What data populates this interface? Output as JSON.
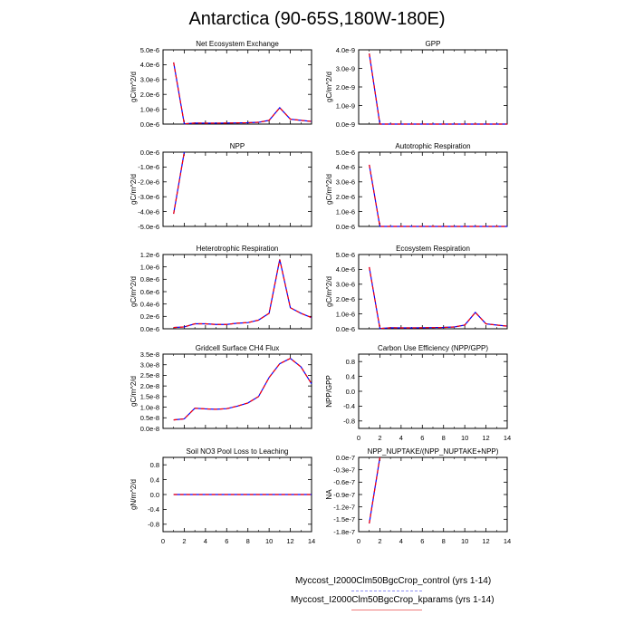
{
  "page_title": "Antarctica (90-65S,180W-180E)",
  "colors": {
    "control": "#0000ff",
    "kparams": "#ff0000",
    "legend_control": "#8f8ff0",
    "legend_kparams": "#f07a7a",
    "axis": "#000000"
  },
  "legend": {
    "entries": [
      {
        "label": "Myccost_I2000Clm50BgcCrop_control (yrs 1-14)",
        "style": "dashed",
        "color": "#8f8ff0"
      },
      {
        "label": "Myccost_I2000Clm50BgcCrop_kparams (yrs 1-14)",
        "style": "solid",
        "color": "#f07a7a"
      }
    ]
  },
  "chart_data": [
    {
      "type": "line",
      "title": "Net Ecosystem Exchange",
      "xlabel": "",
      "ylabel": "gC/m^2/d",
      "xlim": [
        0,
        14
      ],
      "ylim": [
        0,
        5e-06
      ],
      "xticks": [
        "0",
        "2",
        "4",
        "6",
        "8",
        "10",
        "12",
        "14"
      ],
      "yticks": [
        "0.0e-6",
        "1.0e-6",
        "2.0e-6",
        "3.0e-6",
        "4.0e-6",
        "5.0e-6"
      ],
      "ytick_values": [
        0,
        1e-06,
        2e-06,
        3e-06,
        4e-06,
        5e-06
      ],
      "show_xtick_labels": false,
      "x": [
        1,
        2,
        3,
        4,
        5,
        6,
        7,
        8,
        9,
        10,
        11,
        12,
        13,
        14
      ],
      "series": [
        {
          "name": "Myccost_I2000Clm50BgcCrop_control (yrs 1-14)",
          "values": [
            4.15e-06,
            2e-08,
            7e-08,
            6e-08,
            6e-08,
            7e-08,
            8e-08,
            9e-08,
            1.2e-07,
            2.5e-07,
            1.1e-06,
            3.3e-07,
            2.5e-07,
            1.8e-07
          ]
        },
        {
          "name": "Myccost_I2000Clm50BgcCrop_kparams (yrs 1-14)",
          "values": [
            4.15e-06,
            2e-08,
            7e-08,
            6e-08,
            6e-08,
            7e-08,
            8e-08,
            9e-08,
            1.2e-07,
            2.5e-07,
            1.1e-06,
            3.3e-07,
            2.5e-07,
            1.8e-07
          ]
        }
      ]
    },
    {
      "type": "line",
      "title": "GPP",
      "xlabel": "",
      "ylabel": "gC/m^2/d",
      "xlim": [
        0,
        14
      ],
      "ylim": [
        0,
        4e-09
      ],
      "xticks": [
        "0",
        "2",
        "4",
        "6",
        "8",
        "10",
        "12",
        "14"
      ],
      "yticks": [
        "0.0e-9",
        "1.0e-9",
        "2.0e-9",
        "3.0e-9",
        "4.0e-9"
      ],
      "ytick_values": [
        0,
        1e-09,
        2e-09,
        3e-09,
        4e-09
      ],
      "show_xtick_labels": false,
      "x": [
        1,
        2,
        3,
        4,
        5,
        6,
        7,
        8,
        9,
        10,
        11,
        12,
        13,
        14
      ],
      "series": [
        {
          "name": "Myccost_I2000Clm50BgcCrop_control (yrs 1-14)",
          "values": [
            3.8e-09,
            0,
            0,
            0,
            0,
            0,
            0,
            0,
            0,
            0,
            0,
            0,
            0,
            0
          ]
        },
        {
          "name": "Myccost_I2000Clm50BgcCrop_kparams (yrs 1-14)",
          "values": [
            3.8e-09,
            0,
            0,
            0,
            0,
            0,
            0,
            0,
            0,
            0,
            0,
            0,
            0,
            0
          ]
        }
      ]
    },
    {
      "type": "line",
      "title": "NPP",
      "xlabel": "",
      "ylabel": "gC/m^2/d",
      "xlim": [
        0,
        14
      ],
      "ylim": [
        -5e-06,
        0
      ],
      "xticks": [
        "0",
        "2",
        "4",
        "6",
        "8",
        "10",
        "12",
        "14"
      ],
      "yticks": [
        "-5.0e-6",
        "-4.0e-6",
        "-3.0e-6",
        "-2.0e-6",
        "-1.0e-6",
        "0.0e-6"
      ],
      "ytick_values": [
        -5e-06,
        -4e-06,
        -3e-06,
        -2e-06,
        -1e-06,
        0
      ],
      "show_xtick_labels": false,
      "x": [
        1,
        2
      ],
      "series": [
        {
          "name": "Myccost_I2000Clm50BgcCrop_control (yrs 1-14)",
          "values": [
            -4.15e-06,
            0
          ]
        },
        {
          "name": "Myccost_I2000Clm50BgcCrop_kparams (yrs 1-14)",
          "values": [
            -4.15e-06,
            0
          ]
        }
      ]
    },
    {
      "type": "line",
      "title": "Autotrophic Respiration",
      "xlabel": "",
      "ylabel": "gC/m^2/d",
      "xlim": [
        0,
        14
      ],
      "ylim": [
        0,
        5e-06
      ],
      "xticks": [
        "0",
        "2",
        "4",
        "6",
        "8",
        "10",
        "12",
        "14"
      ],
      "yticks": [
        "0.0e-6",
        "1.0e-6",
        "2.0e-6",
        "3.0e-6",
        "4.0e-6",
        "5.0e-6"
      ],
      "ytick_values": [
        0,
        1e-06,
        2e-06,
        3e-06,
        4e-06,
        5e-06
      ],
      "show_xtick_labels": false,
      "x": [
        1,
        2,
        3,
        4,
        5,
        6,
        7,
        8,
        9,
        10,
        11,
        12,
        13,
        14
      ],
      "series": [
        {
          "name": "Myccost_I2000Clm50BgcCrop_control (yrs 1-14)",
          "values": [
            4.15e-06,
            0,
            0,
            0,
            0,
            0,
            0,
            0,
            0,
            0,
            0,
            0,
            0,
            0
          ]
        },
        {
          "name": "Myccost_I2000Clm50BgcCrop_kparams (yrs 1-14)",
          "values": [
            4.15e-06,
            0,
            0,
            0,
            0,
            0,
            0,
            0,
            0,
            0,
            0,
            0,
            0,
            0
          ]
        }
      ]
    },
    {
      "type": "line",
      "title": "Heterotrophic Respiration",
      "xlabel": "",
      "ylabel": "gC/m^2/d",
      "xlim": [
        0,
        14
      ],
      "ylim": [
        0,
        1.2e-06
      ],
      "xticks": [
        "0",
        "2",
        "4",
        "6",
        "8",
        "10",
        "12",
        "14"
      ],
      "yticks": [
        "0.0e-6",
        "0.2e-6",
        "0.4e-6",
        "0.6e-6",
        "0.8e-6",
        "1.0e-6",
        "1.2e-6"
      ],
      "ytick_values": [
        0,
        2e-07,
        4e-07,
        6e-07,
        8e-07,
        1e-06,
        1.2e-06
      ],
      "show_xtick_labels": false,
      "x": [
        1,
        2,
        3,
        4,
        5,
        6,
        7,
        8,
        9,
        10,
        11,
        12,
        13,
        14
      ],
      "series": [
        {
          "name": "Myccost_I2000Clm50BgcCrop_control (yrs 1-14)",
          "values": [
            2e-08,
            3e-08,
            8e-08,
            8e-08,
            7e-08,
            7e-08,
            9e-08,
            1e-07,
            1.4e-07,
            2.5e-07,
            1.12e-06,
            3.4e-07,
            2.5e-07,
            1.8e-07
          ]
        },
        {
          "name": "Myccost_I2000Clm50BgcCrop_kparams (yrs 1-14)",
          "values": [
            2e-08,
            3e-08,
            8e-08,
            8e-08,
            7e-08,
            7e-08,
            9e-08,
            1e-07,
            1.4e-07,
            2.5e-07,
            1.12e-06,
            3.4e-07,
            2.5e-07,
            1.8e-07
          ]
        }
      ]
    },
    {
      "type": "line",
      "title": "Ecosystem Respiration",
      "xlabel": "",
      "ylabel": "gC/m^2/d",
      "xlim": [
        0,
        14
      ],
      "ylim": [
        0,
        5e-06
      ],
      "xticks": [
        "0",
        "2",
        "4",
        "6",
        "8",
        "10",
        "12",
        "14"
      ],
      "yticks": [
        "0.0e-6",
        "1.0e-6",
        "2.0e-6",
        "3.0e-6",
        "4.0e-6",
        "5.0e-6"
      ],
      "ytick_values": [
        0,
        1e-06,
        2e-06,
        3e-06,
        4e-06,
        5e-06
      ],
      "show_xtick_labels": false,
      "x": [
        1,
        2,
        3,
        4,
        5,
        6,
        7,
        8,
        9,
        10,
        11,
        12,
        13,
        14
      ],
      "series": [
        {
          "name": "Myccost_I2000Clm50BgcCrop_control (yrs 1-14)",
          "values": [
            4.15e-06,
            2e-08,
            7e-08,
            6e-08,
            6e-08,
            7e-08,
            8e-08,
            9e-08,
            1.2e-07,
            2.5e-07,
            1.1e-06,
            3.3e-07,
            2.5e-07,
            1.8e-07
          ]
        },
        {
          "name": "Myccost_I2000Clm50BgcCrop_kparams (yrs 1-14)",
          "values": [
            4.15e-06,
            2e-08,
            7e-08,
            6e-08,
            6e-08,
            7e-08,
            8e-08,
            9e-08,
            1.2e-07,
            2.5e-07,
            1.1e-06,
            3.3e-07,
            2.5e-07,
            1.8e-07
          ]
        }
      ]
    },
    {
      "type": "line",
      "title": "Gridcell Surface CH4 Flux",
      "xlabel": "",
      "ylabel": "gC/m^2/d",
      "xlim": [
        0,
        14
      ],
      "ylim": [
        0,
        3.5e-08
      ],
      "xticks": [
        "0",
        "2",
        "4",
        "6",
        "8",
        "10",
        "12",
        "14"
      ],
      "yticks": [
        "0.0e-8",
        "0.5e-8",
        "1.0e-8",
        "1.5e-8",
        "2.0e-8",
        "2.5e-8",
        "3.0e-8",
        "3.5e-8"
      ],
      "ytick_values": [
        0,
        5e-09,
        1e-08,
        1.5e-08,
        2e-08,
        2.5e-08,
        3e-08,
        3.5e-08
      ],
      "show_xtick_labels": false,
      "x": [
        1,
        2,
        3,
        4,
        5,
        6,
        7,
        8,
        9,
        10,
        11,
        12,
        13,
        14
      ],
      "series": [
        {
          "name": "Myccost_I2000Clm50BgcCrop_control (yrs 1-14)",
          "values": [
            4e-09,
            4.5e-09,
            9.5e-09,
            9.2e-09,
            9e-09,
            9.3e-09,
            1.05e-08,
            1.2e-08,
            1.5e-08,
            2.4e-08,
            3.05e-08,
            3.3e-08,
            2.9e-08,
            2.1e-08
          ]
        },
        {
          "name": "Myccost_I2000Clm50BgcCrop_kparams (yrs 1-14)",
          "values": [
            4e-09,
            4.5e-09,
            9.5e-09,
            9.2e-09,
            9e-09,
            9.3e-09,
            1.05e-08,
            1.2e-08,
            1.5e-08,
            2.4e-08,
            3.05e-08,
            3.3e-08,
            2.9e-08,
            2.1e-08
          ]
        }
      ]
    },
    {
      "type": "line",
      "title": "Carbon Use Efficiency (NPP/GPP)",
      "xlabel": "",
      "ylabel": "NPP/GPP",
      "xlim": [
        0,
        14
      ],
      "ylim": [
        -1,
        1
      ],
      "xticks": [
        "0",
        "2",
        "4",
        "6",
        "8",
        "10",
        "12",
        "14"
      ],
      "yticks": [
        "-0.8",
        "-0.4",
        "0.0",
        "0.4",
        "0.8"
      ],
      "ytick_values": [
        -0.8,
        -0.4,
        0,
        0.4,
        0.8
      ],
      "show_xtick_labels": true,
      "x": [],
      "series": []
    },
    {
      "type": "line",
      "title": "Soil NO3 Pool Loss to Leaching",
      "xlabel": "",
      "ylabel": "gN/m^2/d",
      "xlim": [
        0,
        14
      ],
      "ylim": [
        -1,
        1
      ],
      "xticks": [
        "0",
        "2",
        "4",
        "6",
        "8",
        "10",
        "12",
        "14"
      ],
      "yticks": [
        "-0.8",
        "-0.4",
        "0.0",
        "0.4",
        "0.8"
      ],
      "ytick_values": [
        -0.8,
        -0.4,
        0,
        0.4,
        0.8
      ],
      "show_xtick_labels": true,
      "x": [
        1,
        2,
        3,
        4,
        5,
        6,
        7,
        8,
        9,
        10,
        11,
        12,
        13,
        14
      ],
      "series": [
        {
          "name": "Myccost_I2000Clm50BgcCrop_control (yrs 1-14)",
          "values": [
            0,
            0,
            0,
            0,
            0,
            0,
            0,
            0,
            0,
            0,
            0,
            0,
            0,
            0
          ]
        },
        {
          "name": "Myccost_I2000Clm50BgcCrop_kparams (yrs 1-14)",
          "values": [
            0,
            0,
            0,
            0,
            0,
            0,
            0,
            0,
            0,
            0,
            0,
            0,
            0,
            0
          ]
        }
      ]
    },
    {
      "type": "line",
      "title": "NPP_NUPTAKE/(NPP_NUPTAKE+NPP)",
      "xlabel": "",
      "ylabel": "NA",
      "xlim": [
        0,
        14
      ],
      "ylim": [
        -1.8e-07,
        0
      ],
      "xticks": [
        "0",
        "2",
        "4",
        "6",
        "8",
        "10",
        "12",
        "14"
      ],
      "yticks": [
        "-1.8e-7",
        "-1.5e-7",
        "-1.2e-7",
        "-0.9e-7",
        "-0.6e-7",
        "-0.3e-7",
        "0.0e-7"
      ],
      "ytick_values": [
        -1.8e-07,
        -1.5e-07,
        -1.2e-07,
        -9e-08,
        -6e-08,
        -3e-08,
        0
      ],
      "show_xtick_labels": true,
      "x": [
        1,
        2
      ],
      "series": [
        {
          "name": "Myccost_I2000Clm50BgcCrop_control (yrs 1-14)",
          "values": [
            -1.6e-07,
            0
          ]
        },
        {
          "name": "Myccost_I2000Clm50BgcCrop_kparams (yrs 1-14)",
          "values": [
            -1.6e-07,
            0
          ]
        }
      ]
    }
  ]
}
